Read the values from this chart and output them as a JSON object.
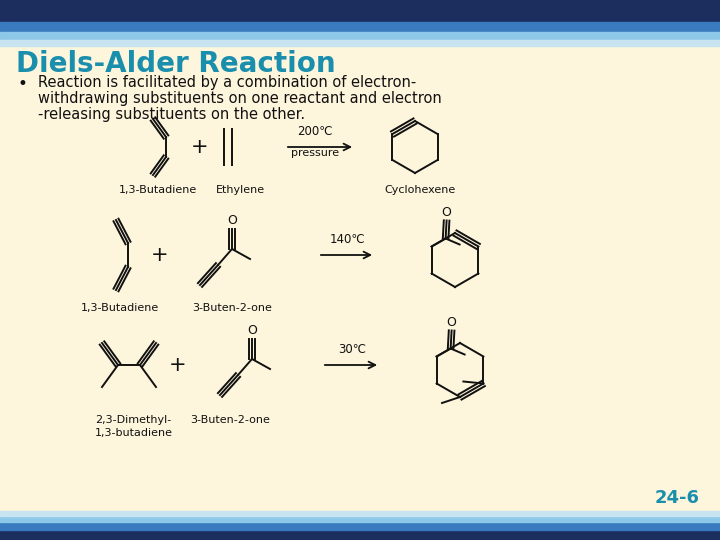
{
  "title": "Diels-Alder Reaction",
  "title_color": "#1a8fad",
  "bg_color": "#fdf5dc",
  "bullet_text_line1": "Reaction is facilitated by a combination of electron-",
  "bullet_text_line2": "withdrawing substituents on one reactant and electron",
  "bullet_text_line3": "-releasing substituents on the other.",
  "bullet_color": "#111111",
  "slide_number": "24-6",
  "slide_number_color": "#1a8fad",
  "r1_label1": "1,3-Butadiene",
  "r1_label2": "Ethylene",
  "r1_cond1": "200℃",
  "r1_cond2": "pressure",
  "r1_label3": "Cyclohexene",
  "r2_label1": "1,3-Butadiene",
  "r2_label2": "3-Buten-2-one",
  "r2_cond": "140℃",
  "r3_label1": "2,3-Dimethyl-",
  "r3_label2": "1,3-butadiene",
  "r3_label3": "3-Buten-2-one",
  "r3_cond": "30℃",
  "line_color": "#111111",
  "label_fontsize": 8,
  "header_top_color": "#1c2e5e",
  "header_mid_color": "#3a7bbf",
  "header_light_color": "#8ec8e8",
  "header_pale_color": "#c8e4f0"
}
